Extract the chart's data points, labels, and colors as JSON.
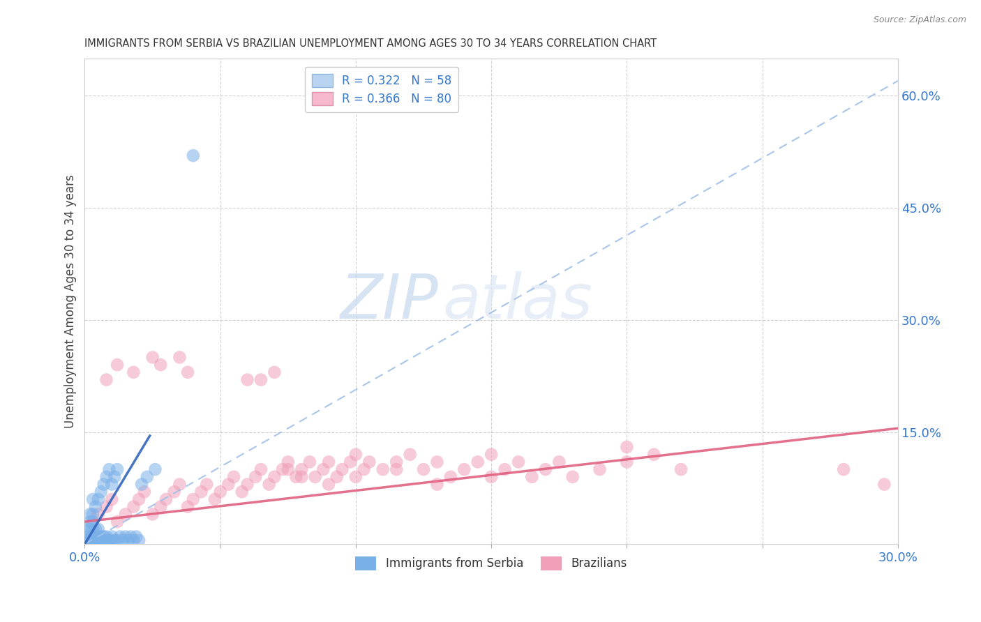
{
  "title": "IMMIGRANTS FROM SERBIA VS BRAZILIAN UNEMPLOYMENT AMONG AGES 30 TO 34 YEARS CORRELATION CHART",
  "source": "Source: ZipAtlas.com",
  "ylabel": "Unemployment Among Ages 30 to 34 years",
  "xlim": [
    0.0,
    0.3
  ],
  "ylim": [
    0.0,
    0.65
  ],
  "xticks": [
    0.0,
    0.05,
    0.1,
    0.15,
    0.2,
    0.25,
    0.3
  ],
  "xticklabels": [
    "0.0%",
    "",
    "",
    "",
    "",
    "",
    "30.0%"
  ],
  "yticks_right": [
    0.0,
    0.15,
    0.3,
    0.45,
    0.6
  ],
  "ytick_right_labels": [
    "",
    "15.0%",
    "30.0%",
    "45.0%",
    "60.0%"
  ],
  "legend_entries": [
    {
      "label": "R = 0.322   N = 58",
      "facecolor": "#b8d4f0",
      "edgecolor": "#90b8e0"
    },
    {
      "label": "R = 0.366   N = 80",
      "facecolor": "#f5b8cc",
      "edgecolor": "#e090aa"
    }
  ],
  "serbia_color": "#7ab0e8",
  "brazil_color": "#f0a0b8",
  "serbia_trend_dashed_color": "#a0c0e8",
  "serbia_trend_solid_color": "#3366bb",
  "brazil_trend_color": "#e06080",
  "serbia_scatter": {
    "x": [
      0.001,
      0.001,
      0.001,
      0.002,
      0.002,
      0.002,
      0.002,
      0.002,
      0.003,
      0.003,
      0.003,
      0.003,
      0.003,
      0.003,
      0.004,
      0.004,
      0.004,
      0.004,
      0.005,
      0.005,
      0.005,
      0.005,
      0.006,
      0.006,
      0.006,
      0.007,
      0.007,
      0.007,
      0.008,
      0.008,
      0.008,
      0.009,
      0.009,
      0.01,
      0.01,
      0.01,
      0.011,
      0.011,
      0.012,
      0.012,
      0.013,
      0.014,
      0.015,
      0.016,
      0.017,
      0.018,
      0.019,
      0.02,
      0.001,
      0.001,
      0.002,
      0.002,
      0.003,
      0.004,
      0.021,
      0.023,
      0.026,
      0.04
    ],
    "y": [
      0.005,
      0.01,
      0.02,
      0.005,
      0.01,
      0.02,
      0.03,
      0.04,
      0.005,
      0.01,
      0.02,
      0.03,
      0.04,
      0.06,
      0.005,
      0.01,
      0.02,
      0.05,
      0.005,
      0.01,
      0.02,
      0.06,
      0.005,
      0.01,
      0.07,
      0.005,
      0.01,
      0.08,
      0.005,
      0.01,
      0.09,
      0.005,
      0.1,
      0.005,
      0.01,
      0.08,
      0.005,
      0.09,
      0.005,
      0.1,
      0.01,
      0.005,
      0.01,
      0.005,
      0.01,
      0.005,
      0.01,
      0.005,
      0.005,
      0.0,
      0.0,
      0.005,
      0.0,
      0.0,
      0.08,
      0.09,
      0.1,
      0.52
    ]
  },
  "brazil_scatter": {
    "x": [
      0.005,
      0.008,
      0.01,
      0.012,
      0.015,
      0.018,
      0.02,
      0.022,
      0.025,
      0.028,
      0.03,
      0.033,
      0.035,
      0.038,
      0.04,
      0.043,
      0.045,
      0.048,
      0.05,
      0.053,
      0.055,
      0.058,
      0.06,
      0.063,
      0.065,
      0.068,
      0.07,
      0.073,
      0.075,
      0.078,
      0.08,
      0.083,
      0.085,
      0.088,
      0.09,
      0.093,
      0.095,
      0.098,
      0.1,
      0.103,
      0.105,
      0.11,
      0.115,
      0.12,
      0.125,
      0.13,
      0.135,
      0.14,
      0.145,
      0.15,
      0.155,
      0.16,
      0.165,
      0.17,
      0.175,
      0.18,
      0.19,
      0.2,
      0.21,
      0.22,
      0.008,
      0.012,
      0.018,
      0.025,
      0.028,
      0.035,
      0.038,
      0.06,
      0.065,
      0.07,
      0.075,
      0.08,
      0.09,
      0.1,
      0.115,
      0.13,
      0.15,
      0.2,
      0.28,
      0.295
    ],
    "y": [
      0.04,
      0.05,
      0.06,
      0.03,
      0.04,
      0.05,
      0.06,
      0.07,
      0.04,
      0.05,
      0.06,
      0.07,
      0.08,
      0.05,
      0.06,
      0.07,
      0.08,
      0.06,
      0.07,
      0.08,
      0.09,
      0.07,
      0.08,
      0.09,
      0.1,
      0.08,
      0.09,
      0.1,
      0.11,
      0.09,
      0.1,
      0.11,
      0.09,
      0.1,
      0.11,
      0.09,
      0.1,
      0.11,
      0.12,
      0.1,
      0.11,
      0.1,
      0.11,
      0.12,
      0.1,
      0.11,
      0.09,
      0.1,
      0.11,
      0.12,
      0.1,
      0.11,
      0.09,
      0.1,
      0.11,
      0.09,
      0.1,
      0.11,
      0.12,
      0.1,
      0.22,
      0.24,
      0.23,
      0.25,
      0.24,
      0.25,
      0.23,
      0.22,
      0.22,
      0.23,
      0.1,
      0.09,
      0.08,
      0.09,
      0.1,
      0.08,
      0.09,
      0.13,
      0.1,
      0.08
    ]
  },
  "serbia_dashed_line": {
    "x0": 0.0,
    "x1": 0.3,
    "y0": 0.0,
    "y1": 0.62
  },
  "serbia_solid_line": {
    "x0": 0.0,
    "x1": 0.024,
    "y0": 0.0,
    "y1": 0.145
  },
  "brazil_trend_line": {
    "x0": 0.0,
    "x1": 0.3,
    "y0": 0.03,
    "y1": 0.155
  },
  "watermark_zip": "ZIP",
  "watermark_atlas": "atlas",
  "background_color": "#ffffff",
  "grid_color": "#cccccc",
  "legend_bottom_labels": [
    "Immigrants from Serbia",
    "Brazilians"
  ]
}
